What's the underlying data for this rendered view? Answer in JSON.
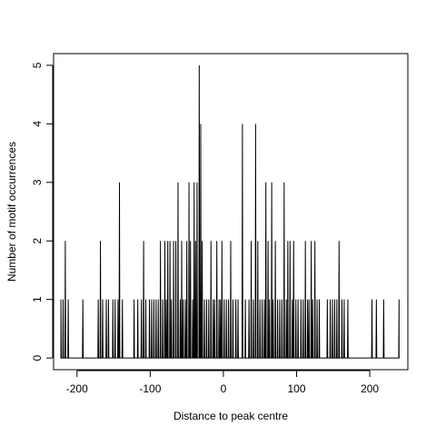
{
  "chart_data": {
    "type": "line",
    "title": "",
    "xlabel": "Distance to peak centre",
    "ylabel": "Number of motif occurrences",
    "xlim": [
      -232,
      252
    ],
    "ylim": [
      -0.2,
      5.2
    ],
    "xticks": [
      -200,
      -100,
      0,
      100,
      200
    ],
    "yticks": [
      0,
      1,
      2,
      3,
      4,
      5
    ],
    "grid": false,
    "legend": "none",
    "line_color": "#000000",
    "x_start": -222,
    "x_end": 240,
    "baseline": 0,
    "spikes": [
      [
        -222,
        1
      ],
      [
        -219,
        1
      ],
      [
        -216,
        2
      ],
      [
        -212,
        1
      ],
      [
        -192,
        1
      ],
      [
        -171,
        1
      ],
      [
        -168,
        2
      ],
      [
        -165,
        1
      ],
      [
        -160,
        1
      ],
      [
        -157,
        1
      ],
      [
        -151,
        1
      ],
      [
        -148,
        1
      ],
      [
        -144,
        1
      ],
      [
        -142,
        3
      ],
      [
        -138,
        1
      ],
      [
        -122,
        1
      ],
      [
        -117,
        1
      ],
      [
        -112,
        1
      ],
      [
        -109,
        2
      ],
      [
        -106,
        1
      ],
      [
        -101,
        1
      ],
      [
        -98,
        1
      ],
      [
        -95,
        1
      ],
      [
        -92,
        1
      ],
      [
        -89,
        1
      ],
      [
        -86,
        2
      ],
      [
        -83,
        1
      ],
      [
        -80,
        2
      ],
      [
        -78,
        1
      ],
      [
        -76,
        2
      ],
      [
        -73,
        2
      ],
      [
        -71,
        1
      ],
      [
        -68,
        2
      ],
      [
        -65,
        2
      ],
      [
        -62,
        3
      ],
      [
        -59,
        1
      ],
      [
        -57,
        2
      ],
      [
        -55,
        1
      ],
      [
        -52,
        1
      ],
      [
        -50,
        2
      ],
      [
        -47,
        3
      ],
      [
        -45,
        2
      ],
      [
        -42,
        1
      ],
      [
        -40,
        3
      ],
      [
        -38,
        2
      ],
      [
        -36,
        3
      ],
      [
        -33,
        5
      ],
      [
        -31,
        4
      ],
      [
        -29,
        2
      ],
      [
        -26,
        1
      ],
      [
        -23,
        1
      ],
      [
        -20,
        1
      ],
      [
        -17,
        2
      ],
      [
        -14,
        1
      ],
      [
        -12,
        1
      ],
      [
        -9,
        2
      ],
      [
        -6,
        1
      ],
      [
        -4,
        1
      ],
      [
        -2,
        2
      ],
      [
        1,
        1
      ],
      [
        4,
        1
      ],
      [
        7,
        1
      ],
      [
        10,
        2
      ],
      [
        13,
        1
      ],
      [
        17,
        1
      ],
      [
        20,
        1
      ],
      [
        26,
        4
      ],
      [
        30,
        1
      ],
      [
        35,
        1
      ],
      [
        38,
        2
      ],
      [
        41,
        1
      ],
      [
        44,
        4
      ],
      [
        47,
        2
      ],
      [
        50,
        1
      ],
      [
        53,
        1
      ],
      [
        56,
        1
      ],
      [
        58,
        3
      ],
      [
        61,
        2
      ],
      [
        63,
        1
      ],
      [
        66,
        3
      ],
      [
        68,
        1
      ],
      [
        71,
        2
      ],
      [
        74,
        1
      ],
      [
        77,
        1
      ],
      [
        80,
        1
      ],
      [
        83,
        3
      ],
      [
        86,
        1
      ],
      [
        88,
        2
      ],
      [
        91,
        2
      ],
      [
        94,
        1
      ],
      [
        96,
        2
      ],
      [
        99,
        1
      ],
      [
        102,
        1
      ],
      [
        106,
        1
      ],
      [
        109,
        1
      ],
      [
        112,
        2
      ],
      [
        115,
        1
      ],
      [
        117,
        1
      ],
      [
        120,
        2
      ],
      [
        122,
        1
      ],
      [
        125,
        2
      ],
      [
        128,
        1
      ],
      [
        131,
        1
      ],
      [
        142,
        1
      ],
      [
        146,
        1
      ],
      [
        149,
        1
      ],
      [
        152,
        1
      ],
      [
        155,
        1
      ],
      [
        158,
        2
      ],
      [
        162,
        1
      ],
      [
        165,
        1
      ],
      [
        170,
        1
      ],
      [
        203,
        1
      ],
      [
        209,
        1
      ],
      [
        219,
        1
      ],
      [
        240,
        1
      ]
    ]
  }
}
